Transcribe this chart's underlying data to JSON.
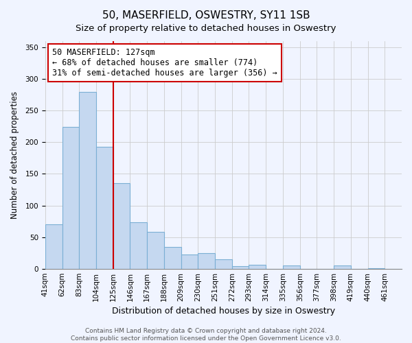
{
  "title": "50, MASERFIELD, OSWESTRY, SY11 1SB",
  "subtitle": "Size of property relative to detached houses in Oswestry",
  "xlabel": "Distribution of detached houses by size in Oswestry",
  "ylabel": "Number of detached properties",
  "categories": [
    "41sqm",
    "62sqm",
    "83sqm",
    "104sqm",
    "125sqm",
    "146sqm",
    "167sqm",
    "188sqm",
    "209sqm",
    "230sqm",
    "251sqm",
    "272sqm",
    "293sqm",
    "314sqm",
    "335sqm",
    "356sqm",
    "377sqm",
    "398sqm",
    "419sqm",
    "440sqm",
    "461sqm"
  ],
  "values": [
    70,
    224,
    280,
    193,
    135,
    73,
    58,
    34,
    22,
    25,
    15,
    4,
    6,
    0,
    5,
    0,
    0,
    5,
    0,
    1,
    0
  ],
  "bar_color": "#c5d8f0",
  "bar_edge_color": "#7bafd4",
  "vline_color": "#cc0000",
  "vline_x": 4.0,
  "annotation_line1": "50 MASERFIELD: 127sqm",
  "annotation_line2": "← 68% of detached houses are smaller (774)",
  "annotation_line3": "31% of semi-detached houses are larger (356) →",
  "annotation_box_color": "#ffffff",
  "annotation_box_edge": "#cc0000",
  "ylim": [
    0,
    360
  ],
  "yticks": [
    0,
    50,
    100,
    150,
    200,
    250,
    300,
    350
  ],
  "footer1": "Contains HM Land Registry data © Crown copyright and database right 2024.",
  "footer2": "Contains public sector information licensed under the Open Government Licence v3.0.",
  "title_fontsize": 11,
  "subtitle_fontsize": 9.5,
  "xlabel_fontsize": 9,
  "ylabel_fontsize": 8.5,
  "tick_fontsize": 7.5,
  "annotation_fontsize": 8.5,
  "footer_fontsize": 6.5,
  "bg_color": "#f0f4ff"
}
